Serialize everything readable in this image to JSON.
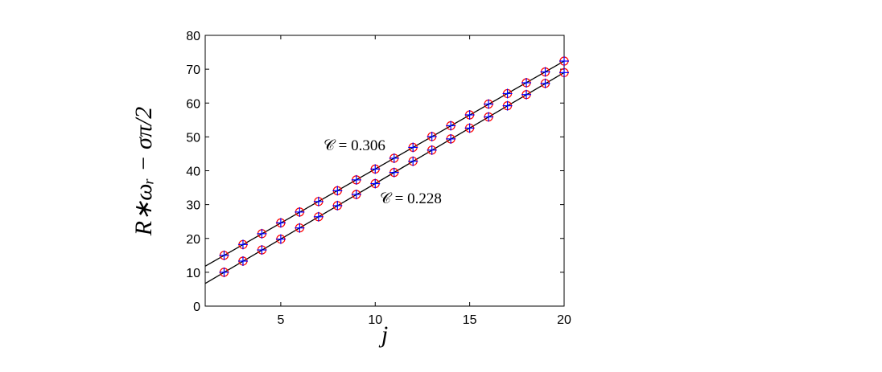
{
  "chart_data": {
    "type": "scatter",
    "xlabel": "j",
    "ylabel": "R∗ωᵣ − σπ/2",
    "x": [
      2,
      3,
      4,
      5,
      6,
      7,
      8,
      9,
      10,
      11,
      12,
      13,
      14,
      15,
      16,
      17,
      18,
      19,
      20
    ],
    "series": [
      {
        "values": [
          15.0,
          18.2,
          21.4,
          24.6,
          27.8,
          30.9,
          34.1,
          37.3,
          40.5,
          43.7,
          46.9,
          50.1,
          53.3,
          56.5,
          59.7,
          62.8,
          66.0,
          69.2,
          72.4
        ]
      },
      {
        "values": [
          10.0,
          13.3,
          16.6,
          19.8,
          23.1,
          26.4,
          29.7,
          33.0,
          36.2,
          39.5,
          42.8,
          46.1,
          49.4,
          52.6,
          55.9,
          59.2,
          62.5,
          65.8,
          69.0
        ]
      }
    ],
    "lines": [
      {
        "x": [
          1,
          20
        ],
        "values": [
          11.8,
          72.4
        ]
      },
      {
        "x": [
          1,
          20
        ],
        "values": [
          6.7,
          69.0
        ]
      }
    ],
    "annotations": [
      "𝒞 = 0.306",
      "𝒞 = 0.228"
    ],
    "marker_colors": [
      "#ff0000",
      "#0000ff"
    ],
    "line_color": "#000000",
    "xlim": [
      1,
      20
    ],
    "xticks": [
      5,
      10,
      15,
      20
    ],
    "ylim": [
      0,
      80
    ],
    "yticks": [
      0,
      10,
      20,
      30,
      40,
      50,
      60,
      70,
      80
    ]
  }
}
